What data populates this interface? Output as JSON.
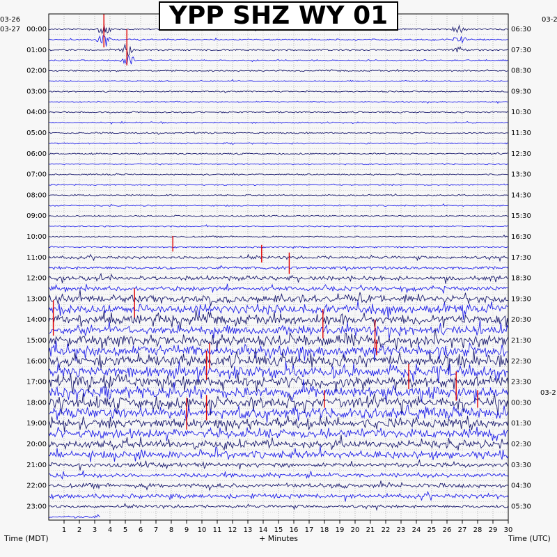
{
  "title": "YPP SHZ WY 01",
  "dates": {
    "left_top": "03-26",
    "left_start": "03-27",
    "right_top": "03-2",
    "right_mid": "03-2"
  },
  "chart_data": {
    "type": "line",
    "title": "YPP SHZ WY 01",
    "xlabel": "+ Minutes",
    "ylabel_left": "Time (MDT)",
    "ylabel_right": "Time (UTC)",
    "xlim": [
      0,
      30
    ],
    "x_ticks": [
      "1",
      "2",
      "3",
      "4",
      "5",
      "6",
      "7",
      "8",
      "9",
      "10",
      "11",
      "12",
      "13",
      "14",
      "15",
      "16",
      "17",
      "18",
      "19",
      "20",
      "21",
      "22",
      "23",
      "24",
      "25",
      "26",
      "27",
      "28",
      "29",
      "30"
    ],
    "left_hour_labels": [
      "00:00",
      "01:00",
      "02:00",
      "03:00",
      "04:00",
      "05:00",
      "06:00",
      "07:00",
      "08:00",
      "09:00",
      "10:00",
      "11:00",
      "12:00",
      "13:00",
      "14:00",
      "15:00",
      "16:00",
      "17:00",
      "18:00",
      "19:00",
      "20:00",
      "21:00",
      "22:00",
      "23:00"
    ],
    "right_hour_labels": [
      "06:30",
      "07:30",
      "08:30",
      "09:30",
      "10:30",
      "11:30",
      "12:30",
      "13:30",
      "14:30",
      "15:30",
      "16:30",
      "17:30",
      "18:30",
      "19:30",
      "20:30",
      "21:30",
      "22:30",
      "23:30",
      "00:30",
      "01:30",
      "02:30",
      "03:30",
      "04:30",
      "05:30"
    ],
    "trace_count": 48,
    "trace_interval_minutes": 30,
    "trace_colors": [
      "#1a1a6e",
      "#1f1fe8"
    ],
    "clip_color": "#e00000",
    "grid": true,
    "trace_amplitude": [
      1,
      1,
      1,
      1,
      1,
      1,
      1,
      1,
      1,
      1,
      1,
      1,
      1,
      1,
      1,
      1,
      1,
      1,
      1,
      1,
      1,
      1,
      2,
      2,
      3,
      3,
      5,
      6,
      6,
      6,
      7,
      7,
      7,
      7,
      7,
      7,
      7,
      7,
      6,
      6,
      5,
      5,
      3,
      3,
      3,
      3,
      2,
      2
    ],
    "events": [
      {
        "trace": 0,
        "minute": 3.6,
        "size": 9
      },
      {
        "trace": 1,
        "minute": 3.6,
        "size": 12
      },
      {
        "trace": 2,
        "minute": 5.1,
        "size": 9
      },
      {
        "trace": 3,
        "minute": 5.2,
        "size": 8
      },
      {
        "trace": 0,
        "minute": 26.8,
        "size": 6
      },
      {
        "trace": 1,
        "minute": 26.8,
        "size": 6
      },
      {
        "trace": 2,
        "minute": 26.8,
        "size": 5
      }
    ]
  }
}
